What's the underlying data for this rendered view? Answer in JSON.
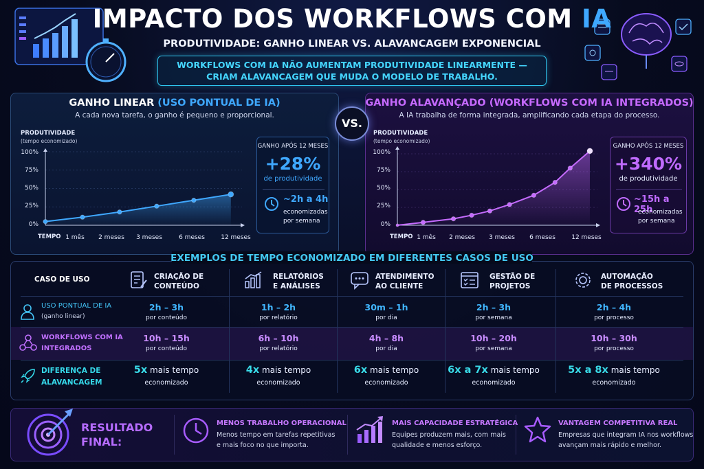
{
  "header": {
    "title_main": "IMPACTO DOS WORKFLOWS COM ",
    "title_highlight": "IA",
    "subtitle": "PRODUTIVIDADE: GANHO LINEAR VS. ALAVANCAGEM EXPONENCIAL",
    "banner_line1": "WORKFLOWS COM IA NÃO AUMENTAM PRODUTIVIDADE LINEARMENTE —",
    "banner_line2": "CRIAM ALAVANCAGEM QUE MUDA O MODELO DE TRABALHO."
  },
  "vs_label": "VS.",
  "left_panel": {
    "title_strong": "GANHO LINEAR",
    "title_paren": " (USO PONTUAL DE IA)",
    "description": "A cada nova tarefa, o ganho é pequeno e proporcional.",
    "stat_header": "GANHO APÓS 12 MESES",
    "stat_value": "+28%",
    "stat_sub": "de produtividade",
    "hours": "~2h a 4h",
    "hours_sub1": "economizadas",
    "hours_sub2": "por semana",
    "accent": "#3fa8ff"
  },
  "right_panel": {
    "title_strong": "GANHO ALAVANÇADO",
    "title_paren": " (WORKFLOWS COM IA INTEGRADOS)",
    "description": "A IA trabalha de forma integrada, amplificando cada etapa do processo.",
    "stat_header": "GANHO APÓS 12 MESES",
    "stat_value": "+340%",
    "stat_sub": "de produtividade",
    "hours": "~15h a 25h",
    "hours_sub1": "economizadas",
    "hours_sub2": "por semana",
    "accent": "#b35cff"
  },
  "chart_data": [
    {
      "type": "line",
      "ylabel": "PRODUTIVIDADE",
      "ylabel_sub": "(tempo economizado)",
      "xlabel": "TEMPO",
      "yticks": [
        "0%",
        "25%",
        "50%",
        "75%",
        "100%"
      ],
      "ylim": [
        0,
        100
      ],
      "xticks": [
        "1 mês",
        "2 meses",
        "3 meses",
        "6 meses",
        "12 meses"
      ],
      "x": [
        0,
        1,
        2,
        3,
        4,
        5
      ],
      "values": [
        5,
        11,
        18,
        26,
        34,
        42
      ],
      "color": "#3fa8ff"
    },
    {
      "type": "line",
      "ylabel": "PRODUTIVIDADE",
      "ylabel_sub": "(tempo economizado)",
      "xlabel": "TEMPO",
      "yticks": [
        "0%",
        "25%",
        "50%",
        "75%",
        "100%"
      ],
      "ylim": [
        0,
        100
      ],
      "xticks": [
        "1 mês",
        "2 meses",
        "3 meses",
        "6 meses",
        "12 meses"
      ],
      "x": [
        0,
        0.85,
        1.85,
        2.45,
        3.05,
        3.7,
        4.5,
        5.2,
        5.7,
        6.35
      ],
      "values": [
        0,
        4,
        9,
        14,
        20,
        29,
        42,
        60,
        80,
        104
      ],
      "color": "#c56bff"
    }
  ],
  "examples": {
    "title": "EXEMPLOS DE TEMPO ECONOMIZADO EM DIFERENTES CASOS DE USO",
    "case_label": "CASO DE USO",
    "columns": [
      {
        "l1": "CRIAÇÃO DE",
        "l2": "CONTEÚDO",
        "icon": "document-icon"
      },
      {
        "l1": "RELATÓRIOS",
        "l2": "E ANÁLISES",
        "icon": "bar-chart-icon"
      },
      {
        "l1": "ATENDIMENTO",
        "l2": "AO CLIENTE",
        "icon": "chat-icon"
      },
      {
        "l1": "GESTÃO DE",
        "l2": "PROJETOS",
        "icon": "checklist-icon"
      },
      {
        "l1": "AUTOMAÇÃO",
        "l2": "DE PROCESSOS",
        "icon": "gear-icon"
      }
    ],
    "row_linear": {
      "label1": "USO PONTUAL DE IA",
      "label2": "(ganho linear)",
      "cells": [
        {
          "v": "2h – 3h",
          "s": "por conteúdo"
        },
        {
          "v": "1h – 2h",
          "s": "por relatório"
        },
        {
          "v": "30m – 1h",
          "s": "por dia"
        },
        {
          "v": "2h – 3h",
          "s": "por semana"
        },
        {
          "v": "2h – 4h",
          "s": "por processo"
        }
      ]
    },
    "row_workflow": {
      "label1": "WORKFLOWS COM IA",
      "label2": "INTEGRADOS",
      "cells": [
        {
          "v": "10h – 15h",
          "s": "por conteúdo"
        },
        {
          "v": "6h – 10h",
          "s": "por relatório"
        },
        {
          "v": "4h – 8h",
          "s": "por dia"
        },
        {
          "v": "10h – 20h",
          "s": "por semana"
        },
        {
          "v": "10h – 30h",
          "s": "por processo"
        }
      ]
    },
    "row_diff": {
      "label1": "DIFERENÇA DE",
      "label2": "ALAVANCAGEM",
      "more_label": " mais tempo",
      "cells": [
        {
          "v": "5x",
          "s": "economizado"
        },
        {
          "v": "4x",
          "s": "economizado"
        },
        {
          "v": "6x",
          "s": "economizado"
        },
        {
          "v": "6x a 7x",
          "s": "economizado"
        },
        {
          "v": "5x a 8x",
          "s": "economizado"
        }
      ]
    }
  },
  "result": {
    "title1": "RESULTADO",
    "title2": "FINAL:",
    "items": [
      {
        "h": "MENOS TRABALHO OPERACIONAL",
        "t1": "Menos tempo em tarefas repetitivas",
        "t2": "e mais foco no que importa.",
        "icon": "clock-icon"
      },
      {
        "h": "MAIS CAPACIDADE ESTRATÉGICA",
        "t1": "Equipes produzem mais, com mais",
        "t2": "qualidade e menos esforço.",
        "icon": "growth-chart-icon"
      },
      {
        "h": "VANTAGEM COMPETITIVA REAL",
        "t1": "Empresas que integram IA nos workflows",
        "t2": "avançam mais rápido e melhor.",
        "icon": "star-icon"
      }
    ]
  }
}
